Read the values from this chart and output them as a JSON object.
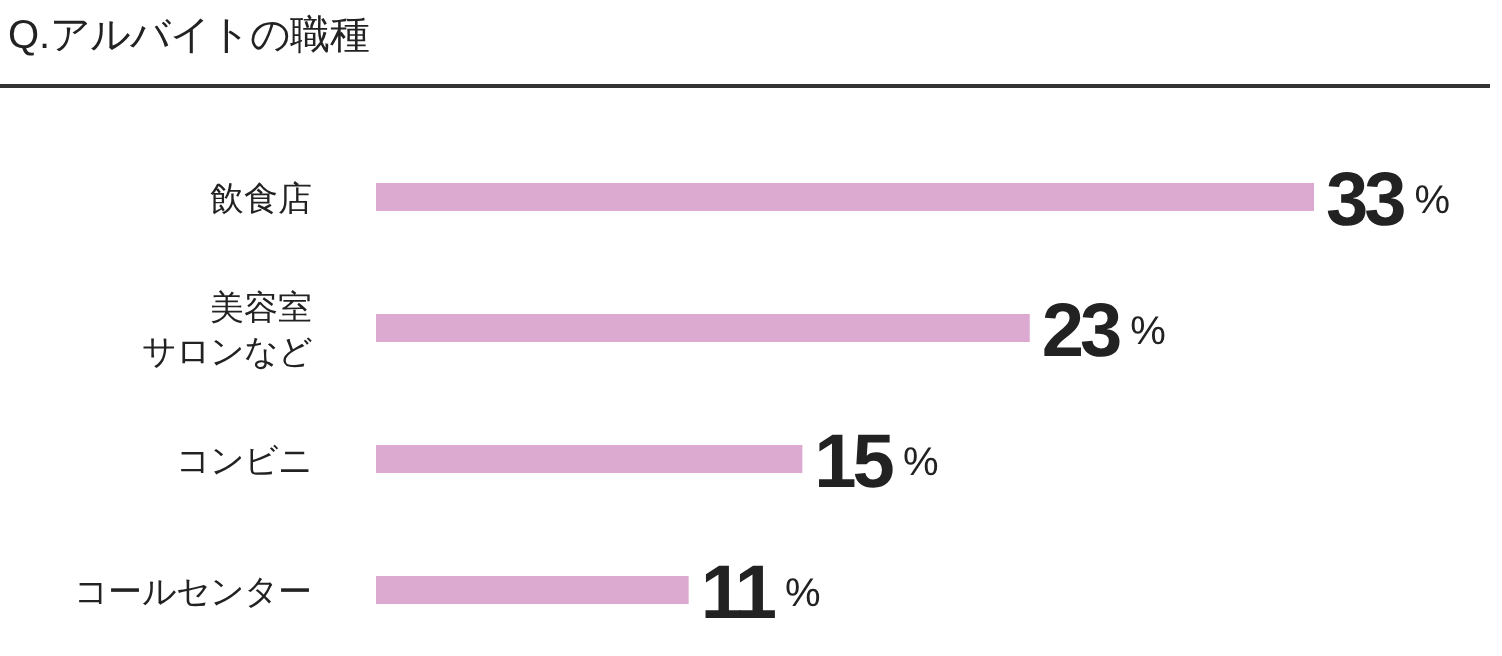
{
  "chart_data": {
    "type": "bar",
    "orientation": "horizontal",
    "title": "Q.アルバイトの職種",
    "categories": [
      "飲食店",
      "美容室サロンなど",
      "コンビニ",
      "コールセンター"
    ],
    "values": [
      33,
      23,
      15,
      11
    ],
    "value_labels": [
      "33%",
      "23%",
      "15%",
      "11%"
    ],
    "color": "#dcaad0",
    "grid": false,
    "legend": false
  }
}
